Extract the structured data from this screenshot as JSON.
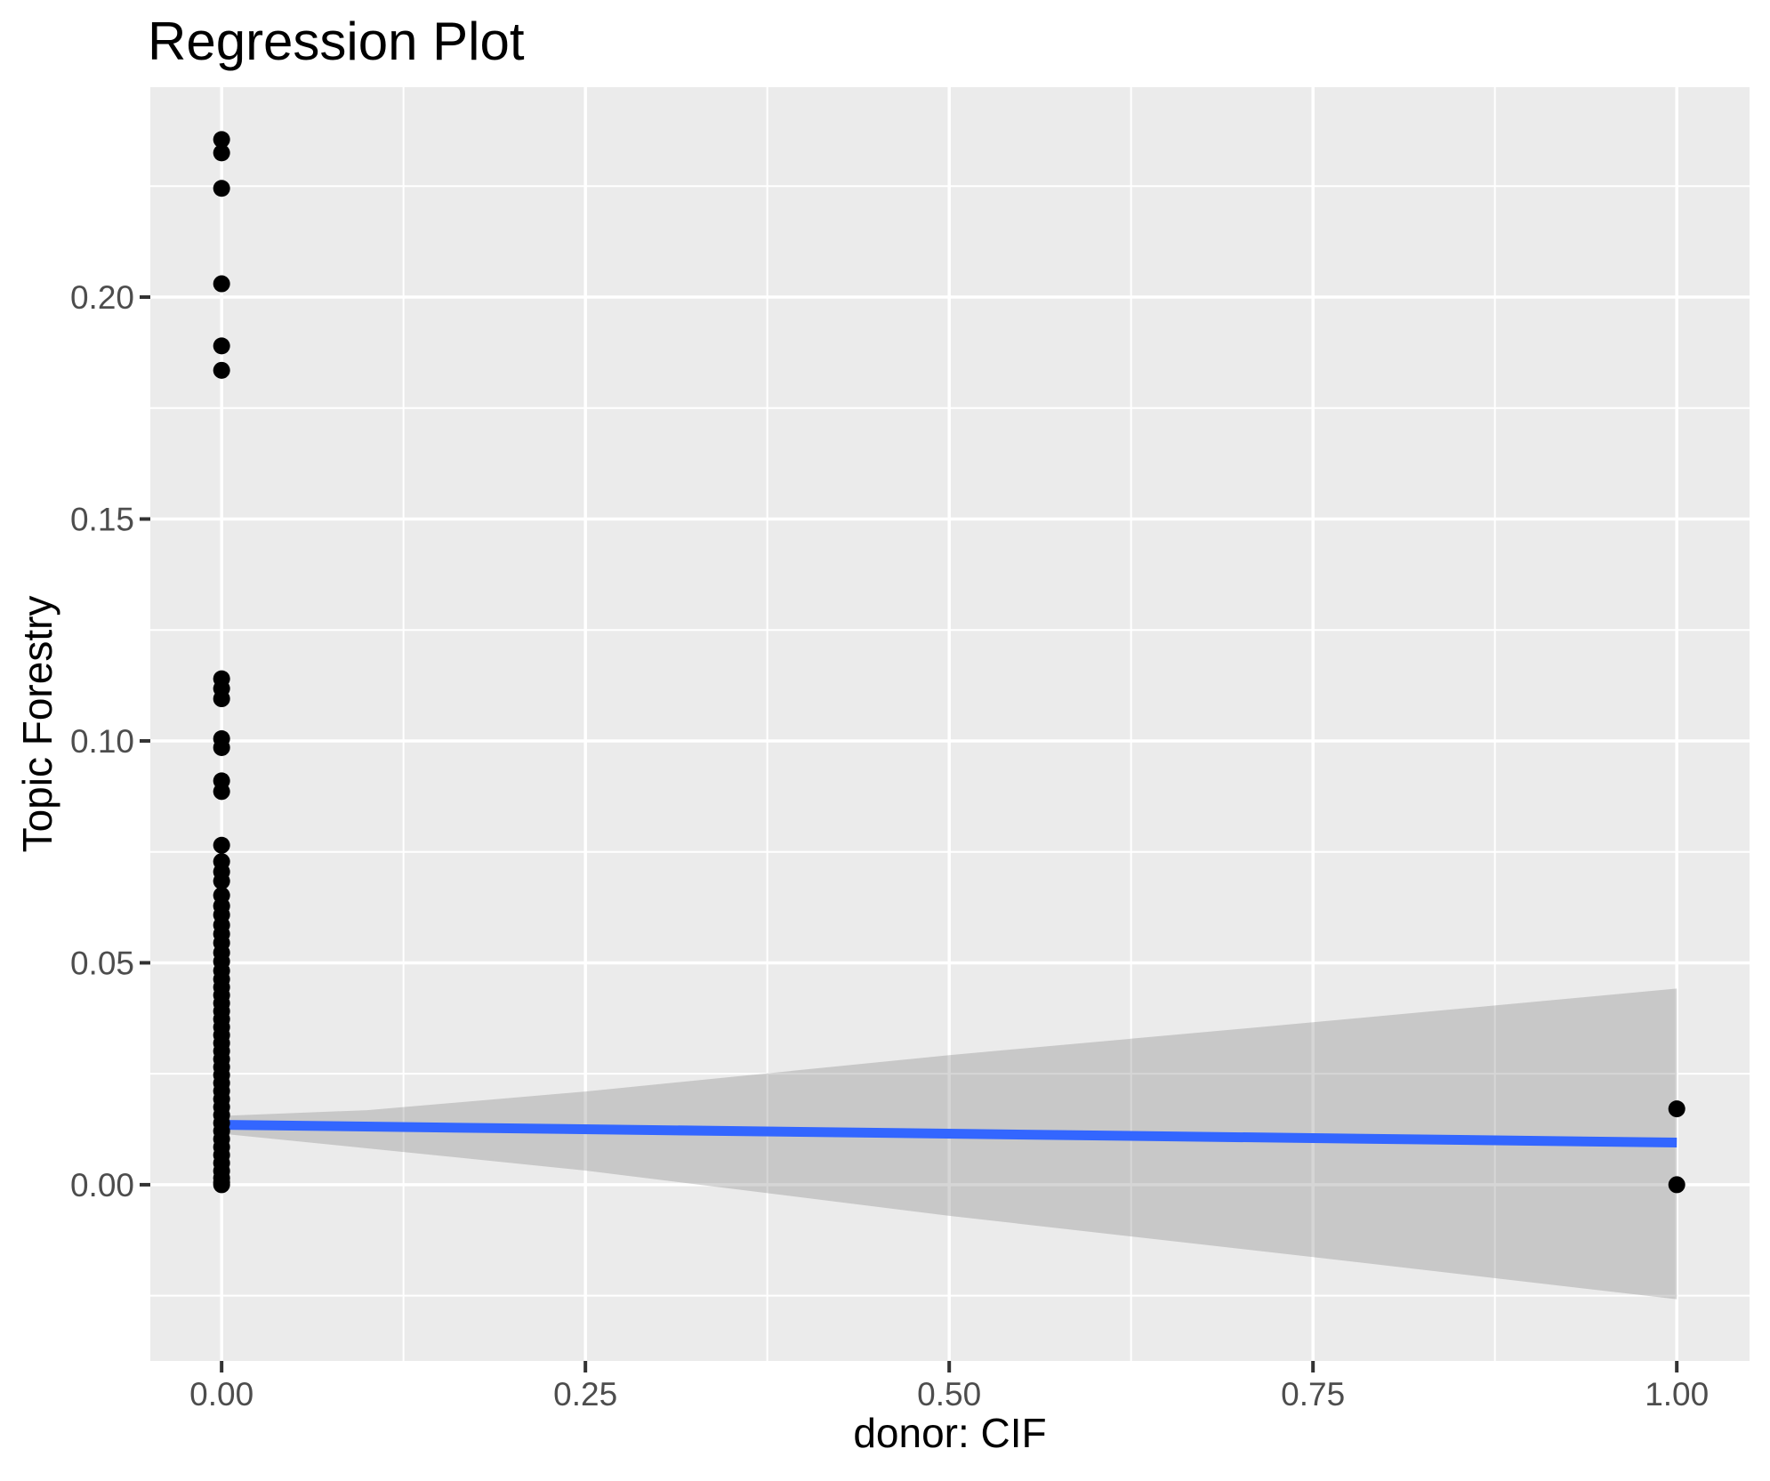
{
  "title": "Regression Plot",
  "chart_data": {
    "type": "scatter",
    "title": "Regression Plot",
    "xlabel": "donor: CIF",
    "ylabel": "Topic Forestry",
    "xlim": [
      -0.049,
      1.05
    ],
    "ylim": [
      -0.0397,
      0.2473
    ],
    "grid": true,
    "legend": "none",
    "x_ticks": {
      "values": [
        0.0,
        0.25,
        0.5,
        0.75,
        1.0
      ],
      "labels": [
        "0.00",
        "0.25",
        "0.50",
        "0.75",
        "1.00"
      ]
    },
    "y_ticks": {
      "values": [
        0.0,
        0.05,
        0.1,
        0.15,
        0.2
      ],
      "labels": [
        "0.00",
        "0.05",
        "0.10",
        "0.15",
        "0.20"
      ]
    },
    "x_minor": [
      0.125,
      0.375,
      0.625,
      0.875
    ],
    "y_minor": [
      -0.025,
      0.025,
      0.075,
      0.125,
      0.175,
      0.225
    ],
    "point_groups": [
      {
        "x": 0.0,
        "ys": [
          0.2355,
          0.2325,
          0.2245,
          0.203,
          0.189,
          0.1835,
          0.114,
          0.1118,
          0.1095,
          0.1005,
          0.0985,
          0.091,
          0.0886,
          0.0765,
          0.0728,
          0.0705,
          0.0684,
          0.0652,
          0.0628,
          0.0608,
          0.0585,
          0.0565,
          0.0545,
          0.0523,
          0.0503,
          0.0482,
          0.0463,
          0.0445,
          0.0427,
          0.0409,
          0.0391,
          0.0373,
          0.0355,
          0.0337,
          0.0319,
          0.0301,
          0.0283,
          0.0265,
          0.0247,
          0.0229,
          0.0211,
          0.0193,
          0.0175,
          0.0157,
          0.0139,
          0.0121,
          0.0103,
          0.0085,
          0.0067,
          0.0049,
          0.0031,
          0.0015,
          0.0005,
          0.0
        ]
      },
      {
        "x": 1.0,
        "ys": [
          0.0171,
          0.0
        ]
      }
    ],
    "regression_line": {
      "x": [
        0.0,
        1.0
      ],
      "y": [
        0.0135,
        0.0095
      ]
    },
    "confidence_band": [
      {
        "x": 0.0,
        "lo": 0.0115,
        "hi": 0.0155
      },
      {
        "x": 0.1,
        "lo": 0.0082,
        "hi": 0.0168
      },
      {
        "x": 0.25,
        "lo": 0.0032,
        "hi": 0.021
      },
      {
        "x": 0.5,
        "lo": -0.007,
        "hi": 0.0292
      },
      {
        "x": 0.75,
        "lo": -0.0163,
        "hi": 0.0366
      },
      {
        "x": 1.0,
        "lo": -0.0258,
        "hi": 0.0442
      }
    ],
    "colors": {
      "panel_background": "#EBEBEB",
      "gridline": "#FFFFFF",
      "point": "#000000",
      "regression_line": "#3366FF",
      "confidence_band": "#7F7F7F",
      "tick_label": "#4D4D4D",
      "tick_mark": "#333333",
      "title_text": "#000000"
    }
  }
}
